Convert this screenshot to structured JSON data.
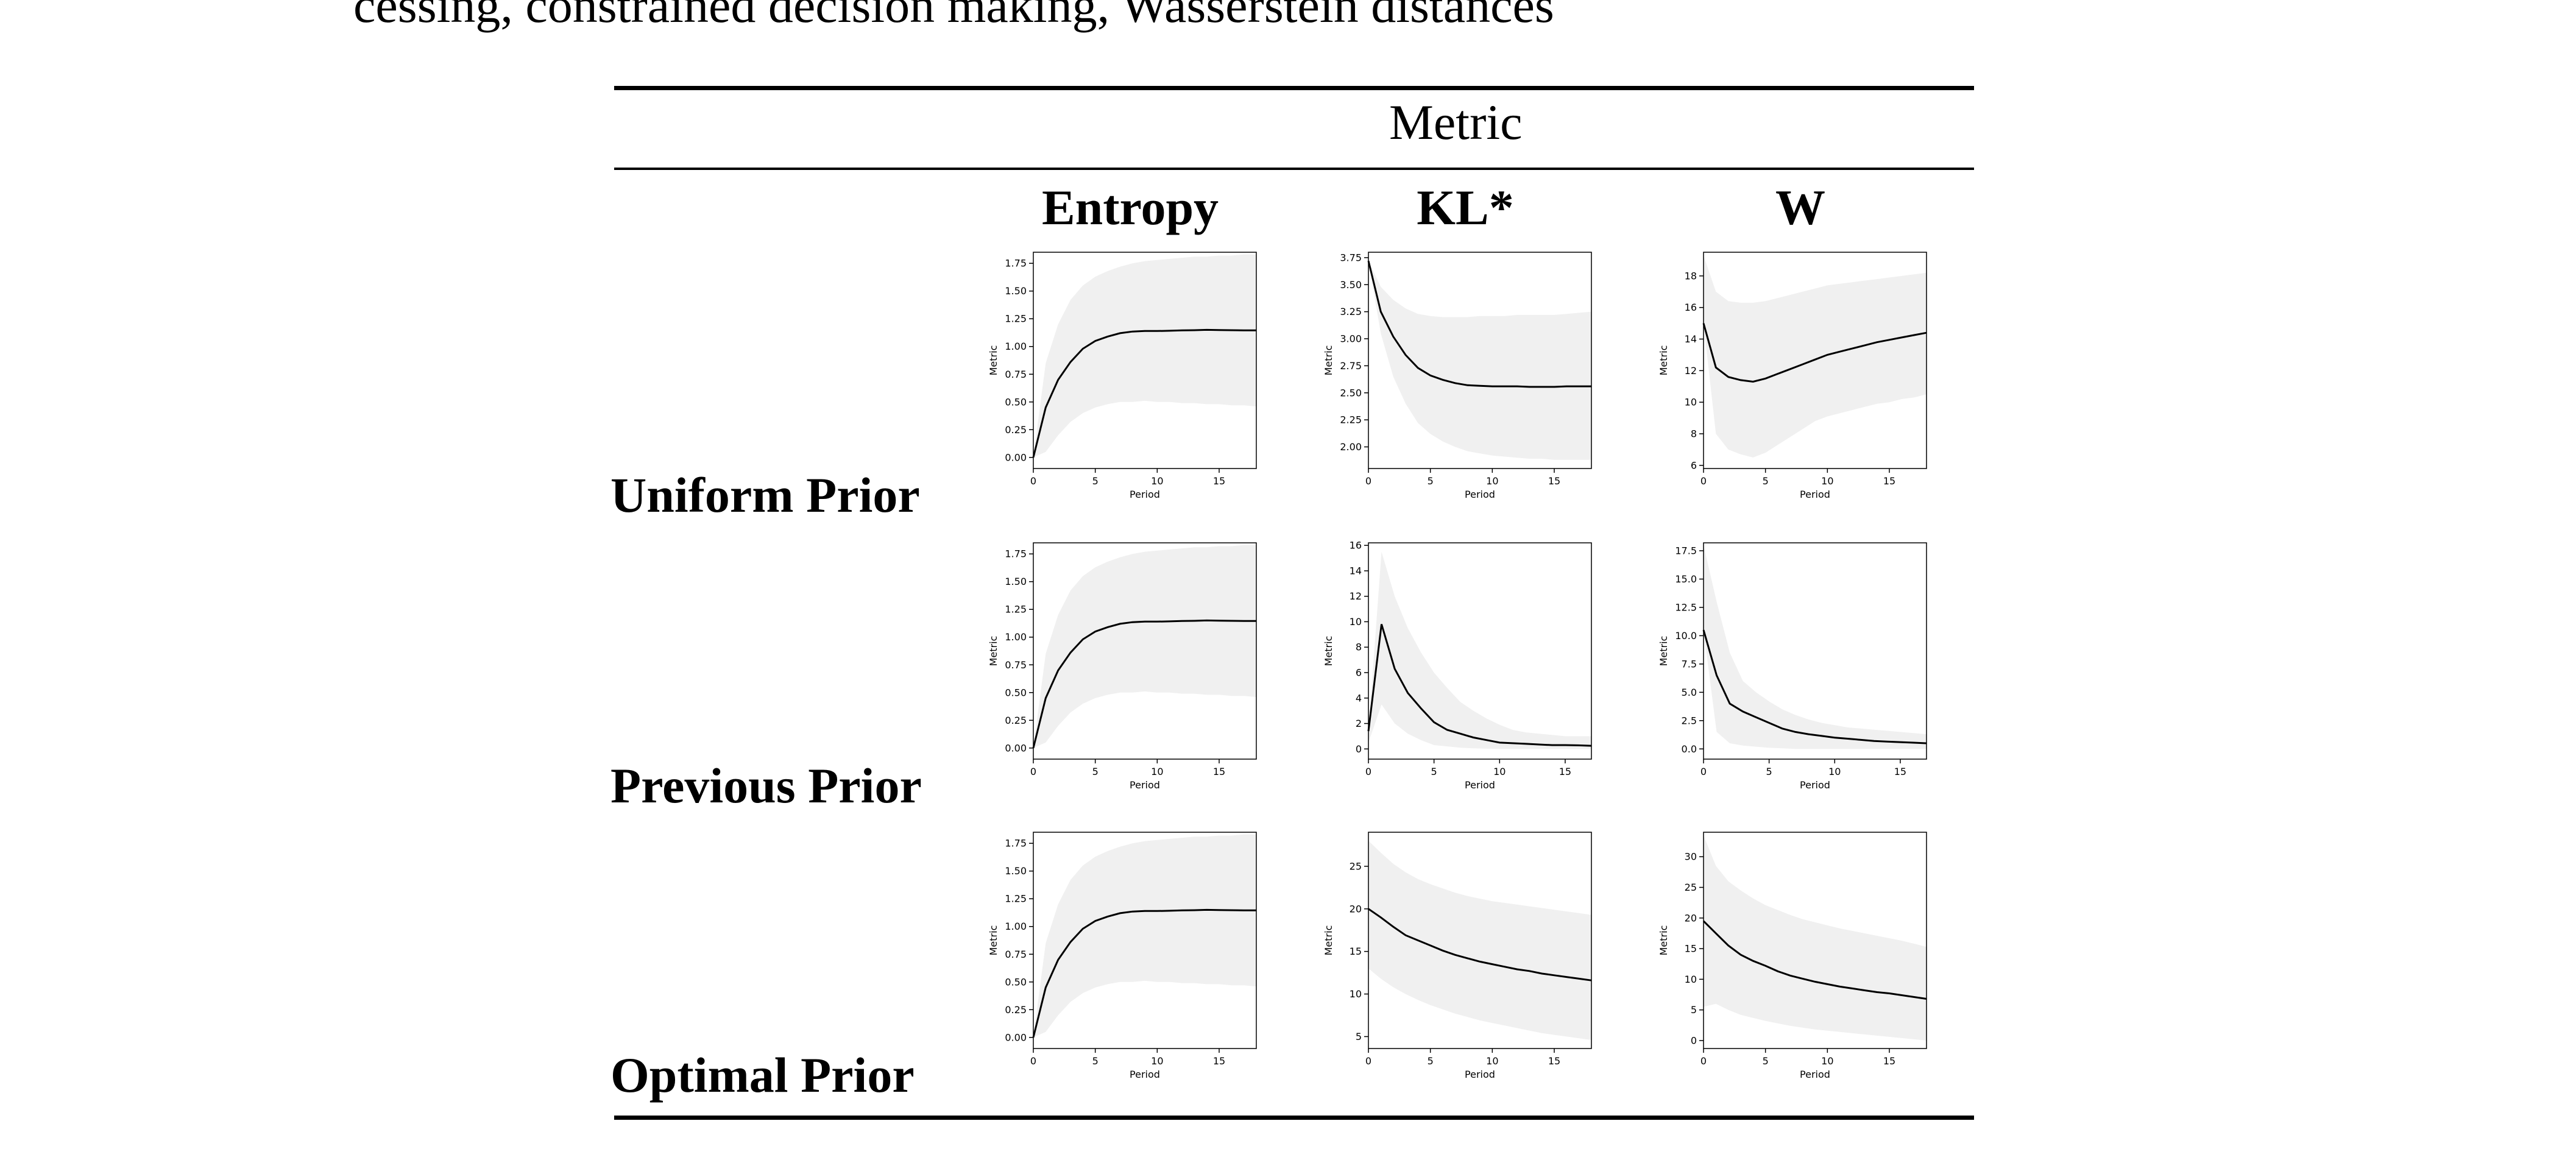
{
  "page": {
    "cutoff_text": "cessing, constrained decision making, Wasserstein distances"
  },
  "table": {
    "header": "Metric",
    "columns": [
      "Entropy",
      "KL*",
      "W"
    ],
    "rows": [
      "Uniform Prior",
      "Previous Prior",
      "Optimal Prior"
    ]
  },
  "chart_data": [
    {
      "type": "line",
      "row": "Uniform Prior",
      "column": "Entropy",
      "xlabel": "Period",
      "ylabel": "Metric",
      "xlim": [
        0,
        18
      ],
      "ylim": [
        -0.1,
        1.85
      ],
      "xticks": [
        0,
        5,
        10,
        15
      ],
      "yticks": [
        0.0,
        0.25,
        0.5,
        0.75,
        1.0,
        1.25,
        1.5,
        1.75
      ],
      "ytick_labels": [
        "0.00",
        "0.25",
        "0.50",
        "0.75",
        "1.00",
        "1.25",
        "1.50",
        "1.75"
      ],
      "x": [
        0,
        1,
        2,
        3,
        4,
        5,
        6,
        7,
        8,
        9,
        10,
        11,
        12,
        13,
        14,
        15,
        16,
        17,
        18
      ],
      "mean": [
        0.0,
        0.45,
        0.7,
        0.86,
        0.98,
        1.05,
        1.09,
        1.12,
        1.135,
        1.14,
        1.14,
        1.142,
        1.145,
        1.147,
        1.15,
        1.148,
        1.147,
        1.146,
        1.145
      ],
      "lower": [
        0.0,
        0.05,
        0.2,
        0.32,
        0.4,
        0.45,
        0.48,
        0.5,
        0.5,
        0.51,
        0.5,
        0.5,
        0.49,
        0.49,
        0.48,
        0.48,
        0.47,
        0.47,
        0.46
      ],
      "upper": [
        0.0,
        0.85,
        1.2,
        1.42,
        1.55,
        1.63,
        1.68,
        1.72,
        1.75,
        1.77,
        1.78,
        1.79,
        1.8,
        1.81,
        1.81,
        1.82,
        1.82,
        1.83,
        1.83
      ]
    },
    {
      "type": "line",
      "row": "Uniform Prior",
      "column": "KL*",
      "xlabel": "Period",
      "ylabel": "Metric",
      "xlim": [
        0,
        18
      ],
      "ylim": [
        1.8,
        3.8
      ],
      "xticks": [
        0,
        5,
        10,
        15
      ],
      "yticks": [
        2.0,
        2.25,
        2.5,
        2.75,
        3.0,
        3.25,
        3.5,
        3.75
      ],
      "ytick_labels": [
        "2.00",
        "2.25",
        "2.50",
        "2.75",
        "3.00",
        "3.25",
        "3.50",
        "3.75"
      ],
      "x": [
        0,
        1,
        2,
        3,
        4,
        5,
        6,
        7,
        8,
        9,
        10,
        11,
        12,
        13,
        14,
        15,
        16,
        17,
        18
      ],
      "mean": [
        3.72,
        3.25,
        3.02,
        2.85,
        2.73,
        2.66,
        2.62,
        2.59,
        2.57,
        2.565,
        2.56,
        2.56,
        2.56,
        2.555,
        2.555,
        2.555,
        2.56,
        2.56,
        2.56
      ],
      "lower": [
        3.72,
        3.05,
        2.65,
        2.4,
        2.22,
        2.12,
        2.05,
        2.0,
        1.96,
        1.94,
        1.92,
        1.91,
        1.9,
        1.89,
        1.89,
        1.88,
        1.88,
        1.88,
        1.88
      ],
      "upper": [
        3.72,
        3.48,
        3.36,
        3.28,
        3.23,
        3.21,
        3.2,
        3.2,
        3.2,
        3.21,
        3.21,
        3.21,
        3.22,
        3.22,
        3.22,
        3.22,
        3.23,
        3.24,
        3.25
      ]
    },
    {
      "type": "line",
      "row": "Uniform Prior",
      "column": "W",
      "xlabel": "Period",
      "ylabel": "Metric",
      "xlim": [
        0,
        18
      ],
      "ylim": [
        5.8,
        19.5
      ],
      "xticks": [
        0,
        5,
        10,
        15
      ],
      "yticks": [
        6,
        8,
        10,
        12,
        14,
        16,
        18
      ],
      "ytick_labels": [
        "6",
        "8",
        "10",
        "12",
        "14",
        "16",
        "18"
      ],
      "x": [
        0,
        1,
        2,
        3,
        4,
        5,
        6,
        7,
        8,
        9,
        10,
        11,
        12,
        13,
        14,
        15,
        16,
        17,
        18
      ],
      "mean": [
        15.0,
        12.2,
        11.6,
        11.4,
        11.3,
        11.5,
        11.8,
        12.1,
        12.4,
        12.7,
        13.0,
        13.2,
        13.4,
        13.6,
        13.8,
        13.95,
        14.1,
        14.25,
        14.4
      ],
      "lower": [
        15.0,
        8.0,
        7.0,
        6.7,
        6.5,
        6.8,
        7.3,
        7.8,
        8.3,
        8.8,
        9.1,
        9.3,
        9.5,
        9.7,
        9.9,
        10.0,
        10.2,
        10.3,
        10.5
      ],
      "upper": [
        19.3,
        17.0,
        16.4,
        16.3,
        16.3,
        16.4,
        16.6,
        16.8,
        17.0,
        17.2,
        17.4,
        17.5,
        17.6,
        17.7,
        17.8,
        17.9,
        18.0,
        18.1,
        18.2
      ]
    },
    {
      "type": "line",
      "row": "Previous Prior",
      "column": "Entropy",
      "xlabel": "Period",
      "ylabel": "Metric",
      "xlim": [
        0,
        18
      ],
      "ylim": [
        -0.1,
        1.85
      ],
      "xticks": [
        0,
        5,
        10,
        15
      ],
      "yticks": [
        0.0,
        0.25,
        0.5,
        0.75,
        1.0,
        1.25,
        1.5,
        1.75
      ],
      "ytick_labels": [
        "0.00",
        "0.25",
        "0.50",
        "0.75",
        "1.00",
        "1.25",
        "1.50",
        "1.75"
      ],
      "x": [
        0,
        1,
        2,
        3,
        4,
        5,
        6,
        7,
        8,
        9,
        10,
        11,
        12,
        13,
        14,
        15,
        16,
        17,
        18
      ],
      "mean": [
        0.0,
        0.45,
        0.7,
        0.86,
        0.98,
        1.05,
        1.09,
        1.12,
        1.135,
        1.14,
        1.14,
        1.142,
        1.145,
        1.147,
        1.15,
        1.148,
        1.147,
        1.146,
        1.145
      ],
      "lower": [
        0.0,
        0.05,
        0.2,
        0.32,
        0.4,
        0.45,
        0.48,
        0.5,
        0.5,
        0.51,
        0.5,
        0.5,
        0.49,
        0.49,
        0.48,
        0.48,
        0.47,
        0.47,
        0.46
      ],
      "upper": [
        0.0,
        0.85,
        1.2,
        1.42,
        1.55,
        1.63,
        1.68,
        1.72,
        1.75,
        1.77,
        1.78,
        1.79,
        1.8,
        1.81,
        1.81,
        1.82,
        1.82,
        1.83,
        1.83
      ]
    },
    {
      "type": "line",
      "row": "Previous Prior",
      "column": "KL*",
      "xlabel": "Period",
      "ylabel": "Metric",
      "xlim": [
        0,
        17
      ],
      "ylim": [
        -0.8,
        16.2
      ],
      "xticks": [
        0,
        5,
        10,
        15
      ],
      "yticks": [
        0,
        2,
        4,
        6,
        8,
        10,
        12,
        14,
        16
      ],
      "ytick_labels": [
        "0",
        "2",
        "4",
        "6",
        "8",
        "10",
        "12",
        "14",
        "16"
      ],
      "x": [
        0,
        1,
        2,
        3,
        4,
        5,
        6,
        7,
        8,
        9,
        10,
        11,
        12,
        13,
        14,
        15,
        16,
        17
      ],
      "mean": [
        1.4,
        9.8,
        6.3,
        4.4,
        3.2,
        2.1,
        1.5,
        1.2,
        0.9,
        0.7,
        0.5,
        0.45,
        0.4,
        0.35,
        0.3,
        0.3,
        0.28,
        0.25
      ],
      "lower": [
        0.5,
        3.5,
        2.0,
        1.2,
        0.7,
        0.3,
        0.2,
        0.1,
        0.05,
        0.02,
        0.0,
        0.0,
        0.0,
        0.0,
        0.0,
        0.0,
        0.0,
        0.0
      ],
      "upper": [
        1.4,
        15.5,
        12.0,
        9.5,
        7.6,
        6.0,
        4.8,
        3.7,
        3.0,
        2.4,
        1.9,
        1.5,
        1.3,
        1.2,
        1.1,
        1.0,
        1.0,
        1.0
      ]
    },
    {
      "type": "line",
      "row": "Previous Prior",
      "column": "W",
      "xlabel": "Period",
      "ylabel": "Metric",
      "xlim": [
        0,
        17
      ],
      "ylim": [
        -0.9,
        18.2
      ],
      "xticks": [
        0,
        5,
        10,
        15
      ],
      "yticks": [
        0.0,
        2.5,
        5.0,
        7.5,
        10.0,
        12.5,
        15.0,
        17.5
      ],
      "ytick_labels": [
        "0.0",
        "2.5",
        "5.0",
        "7.5",
        "10.0",
        "12.5",
        "15.0",
        "17.5"
      ],
      "x": [
        0,
        1,
        2,
        3,
        4,
        5,
        6,
        7,
        8,
        9,
        10,
        11,
        12,
        13,
        14,
        15,
        16,
        17
      ],
      "mean": [
        10.5,
        6.5,
        4.0,
        3.3,
        2.8,
        2.3,
        1.8,
        1.5,
        1.3,
        1.15,
        1.0,
        0.9,
        0.8,
        0.7,
        0.65,
        0.6,
        0.55,
        0.5
      ],
      "lower": [
        10.5,
        1.5,
        0.5,
        0.3,
        0.2,
        0.1,
        0.05,
        0.0,
        0.0,
        0.0,
        0.0,
        0.0,
        0.0,
        0.0,
        0.0,
        0.0,
        0.0,
        0.0
      ],
      "upper": [
        18.0,
        13.0,
        8.5,
        6.0,
        5.0,
        4.2,
        3.5,
        3.0,
        2.6,
        2.3,
        2.1,
        1.9,
        1.8,
        1.7,
        1.6,
        1.5,
        1.4,
        1.3
      ]
    },
    {
      "type": "line",
      "row": "Optimal Prior",
      "column": "Entropy",
      "xlabel": "Period",
      "ylabel": "Metric",
      "xlim": [
        0,
        18
      ],
      "ylim": [
        -0.1,
        1.85
      ],
      "xticks": [
        0,
        5,
        10,
        15
      ],
      "yticks": [
        0.0,
        0.25,
        0.5,
        0.75,
        1.0,
        1.25,
        1.5,
        1.75
      ],
      "ytick_labels": [
        "0.00",
        "0.25",
        "0.50",
        "0.75",
        "1.00",
        "1.25",
        "1.50",
        "1.75"
      ],
      "x": [
        0,
        1,
        2,
        3,
        4,
        5,
        6,
        7,
        8,
        9,
        10,
        11,
        12,
        13,
        14,
        15,
        16,
        17,
        18
      ],
      "mean": [
        0.0,
        0.45,
        0.7,
        0.86,
        0.98,
        1.05,
        1.09,
        1.12,
        1.135,
        1.14,
        1.14,
        1.142,
        1.145,
        1.147,
        1.15,
        1.148,
        1.147,
        1.146,
        1.145
      ],
      "lower": [
        0.0,
        0.05,
        0.2,
        0.32,
        0.4,
        0.45,
        0.48,
        0.5,
        0.5,
        0.51,
        0.5,
        0.5,
        0.49,
        0.49,
        0.48,
        0.48,
        0.47,
        0.47,
        0.46
      ],
      "upper": [
        0.0,
        0.85,
        1.2,
        1.42,
        1.55,
        1.63,
        1.68,
        1.72,
        1.75,
        1.77,
        1.78,
        1.79,
        1.8,
        1.81,
        1.81,
        1.82,
        1.82,
        1.83,
        1.83
      ]
    },
    {
      "type": "line",
      "row": "Optimal Prior",
      "column": "KL*",
      "xlabel": "Period",
      "ylabel": "Metric",
      "xlim": [
        0,
        18
      ],
      "ylim": [
        3.6,
        29.0
      ],
      "xticks": [
        0,
        5,
        10,
        15
      ],
      "yticks": [
        5,
        10,
        15,
        20,
        25
      ],
      "ytick_labels": [
        "5",
        "10",
        "15",
        "20",
        "25"
      ],
      "x": [
        0,
        1,
        2,
        3,
        4,
        5,
        6,
        7,
        8,
        9,
        10,
        11,
        12,
        13,
        14,
        15,
        16,
        17,
        18
      ],
      "mean": [
        20.0,
        19.0,
        17.9,
        16.9,
        16.3,
        15.7,
        15.1,
        14.6,
        14.2,
        13.8,
        13.5,
        13.2,
        12.9,
        12.7,
        12.4,
        12.2,
        12.0,
        11.8,
        11.6
      ],
      "lower": [
        13.0,
        11.8,
        10.8,
        10.0,
        9.3,
        8.7,
        8.2,
        7.7,
        7.3,
        6.9,
        6.6,
        6.3,
        6.0,
        5.7,
        5.4,
        5.2,
        5.0,
        4.8,
        4.6
      ],
      "upper": [
        28.0,
        26.6,
        25.3,
        24.3,
        23.5,
        22.9,
        22.4,
        21.9,
        21.5,
        21.2,
        20.9,
        20.7,
        20.5,
        20.3,
        20.1,
        19.9,
        19.7,
        19.5,
        19.3
      ]
    },
    {
      "type": "line",
      "row": "Optimal Prior",
      "column": "W",
      "xlabel": "Period",
      "ylabel": "Metric",
      "xlim": [
        0,
        18
      ],
      "ylim": [
        -1.3,
        34.0
      ],
      "xticks": [
        0,
        5,
        10,
        15
      ],
      "yticks": [
        0,
        5,
        10,
        15,
        20,
        25,
        30
      ],
      "ytick_labels": [
        "0",
        "5",
        "10",
        "15",
        "20",
        "25",
        "30"
      ],
      "x": [
        0,
        1,
        2,
        3,
        4,
        5,
        6,
        7,
        8,
        9,
        10,
        11,
        12,
        13,
        14,
        15,
        16,
        17,
        18
      ],
      "mean": [
        19.5,
        17.5,
        15.5,
        14.0,
        13.0,
        12.2,
        11.3,
        10.6,
        10.1,
        9.6,
        9.2,
        8.8,
        8.5,
        8.2,
        7.9,
        7.7,
        7.4,
        7.1,
        6.8
      ],
      "lower": [
        5.5,
        6.0,
        5.0,
        4.2,
        3.7,
        3.2,
        2.8,
        2.4,
        2.1,
        1.8,
        1.6,
        1.4,
        1.2,
        1.0,
        0.8,
        0.6,
        0.4,
        0.2,
        0.0
      ],
      "upper": [
        33.5,
        28.5,
        26.0,
        24.5,
        23.2,
        22.1,
        21.3,
        20.5,
        19.8,
        19.3,
        18.8,
        18.3,
        17.9,
        17.5,
        17.1,
        16.7,
        16.3,
        15.8,
        15.3
      ]
    }
  ]
}
